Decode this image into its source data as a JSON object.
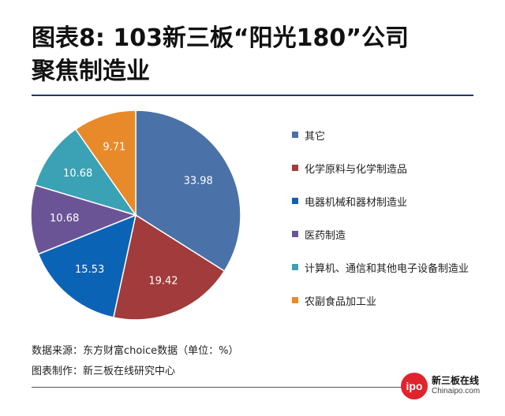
{
  "title": {
    "line1": "图表8: 103新三板“阳光180”公司",
    "line2": "聚焦制造业"
  },
  "chart_data": {
    "type": "pie",
    "slices": [
      {
        "label": "其它",
        "value": 33.98,
        "color": "#4a72a8"
      },
      {
        "label": "化学原料与化学制造品",
        "value": 19.42,
        "color": "#a23b3b"
      },
      {
        "label": "电器机械和器材制造业",
        "value": 15.53,
        "color": "#0b63b5"
      },
      {
        "label": "医药制造",
        "value": 10.68,
        "color": "#6b5496"
      },
      {
        "label": "计算机、通信和其他电子设备制造业",
        "value": 10.68,
        "color": "#3aa2b4"
      },
      {
        "label": "农副食品加工业",
        "value": 9.71,
        "color": "#e98a2a"
      }
    ],
    "start_angle_deg": 0,
    "direction": "clockwise",
    "legend_position": "right"
  },
  "footer": {
    "source": "数据来源：东方财富choice数据（单位：%）",
    "made_by": "图表制作：新三板在线研究中心"
  },
  "logo": {
    "badge": "ipo",
    "cn": "新三板在线",
    "en": "Chinaipo.com"
  }
}
